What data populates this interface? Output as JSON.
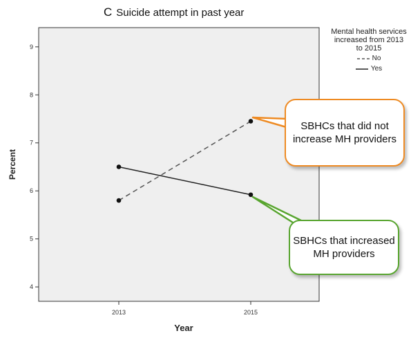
{
  "panel_letter": "C",
  "chart_data": {
    "type": "line",
    "title": "Suicide attempt in past year",
    "xlabel": "Year",
    "ylabel": "Percent",
    "categories": [
      "2013",
      "2015"
    ],
    "ylim": [
      3.7,
      9.4
    ],
    "yticks": [
      4,
      5,
      6,
      7,
      8,
      9
    ],
    "grid": false,
    "legend_title": "Mental health services increased from 2013 to 2015",
    "legend_placement": "top-right",
    "series": [
      {
        "name": "No",
        "values": [
          5.8,
          7.45
        ],
        "style": "dashed",
        "color": "#555555"
      },
      {
        "name": "Yes",
        "values": [
          6.5,
          5.92
        ],
        "style": "solid",
        "color": "#222222"
      }
    ]
  },
  "callouts": {
    "no_label": "SBHCs that did not increase MH providers",
    "yes_label": "SBHCs that increased MH providers",
    "no_color": "#ee8a22",
    "yes_color": "#58a52f"
  },
  "colors": {
    "plot_background": "#efefef",
    "axis": "#333333"
  }
}
